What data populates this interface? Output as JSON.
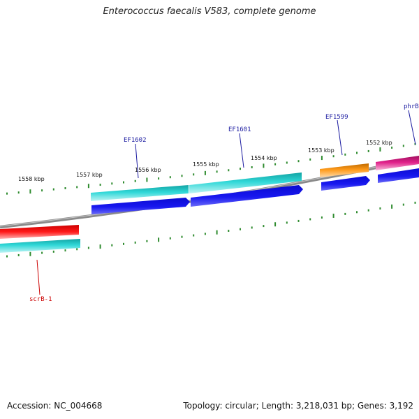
{
  "title": "Enterococcus faecalis V583, complete genome",
  "footer": {
    "accession": "Accession: NC_004668",
    "summary": "Topology: circular; Length: 3,218,031 bp; Genes: 3,192"
  },
  "colors": {
    "backbone": "#7a7a7a",
    "tick": "#2e8b2e",
    "gene_label_fwd": "#1a1aa0",
    "gene_label_rev": "#cc0000"
  },
  "chart_data": {
    "type": "genome-map",
    "scale_labels": [
      "1558 kbp",
      "1557 kbp",
      "1556 kbp",
      "1555 kbp",
      "1554 kbp",
      "1553 kbp",
      "1552 kbp"
    ],
    "gene_labels": [
      {
        "name": "EF1602",
        "strand": "upper"
      },
      {
        "name": "EF1601",
        "strand": "upper"
      },
      {
        "name": "EF1599",
        "strand": "upper"
      },
      {
        "name": "phrB",
        "strand": "upper"
      },
      {
        "name": "scrB-1",
        "strand": "lower"
      }
    ],
    "feature_colors": {
      "cyan": "#1ec8c8",
      "blue": "#1414e6",
      "orange": "#ff9a1a",
      "magenta": "#e0208a",
      "red": "#ee1111"
    }
  }
}
